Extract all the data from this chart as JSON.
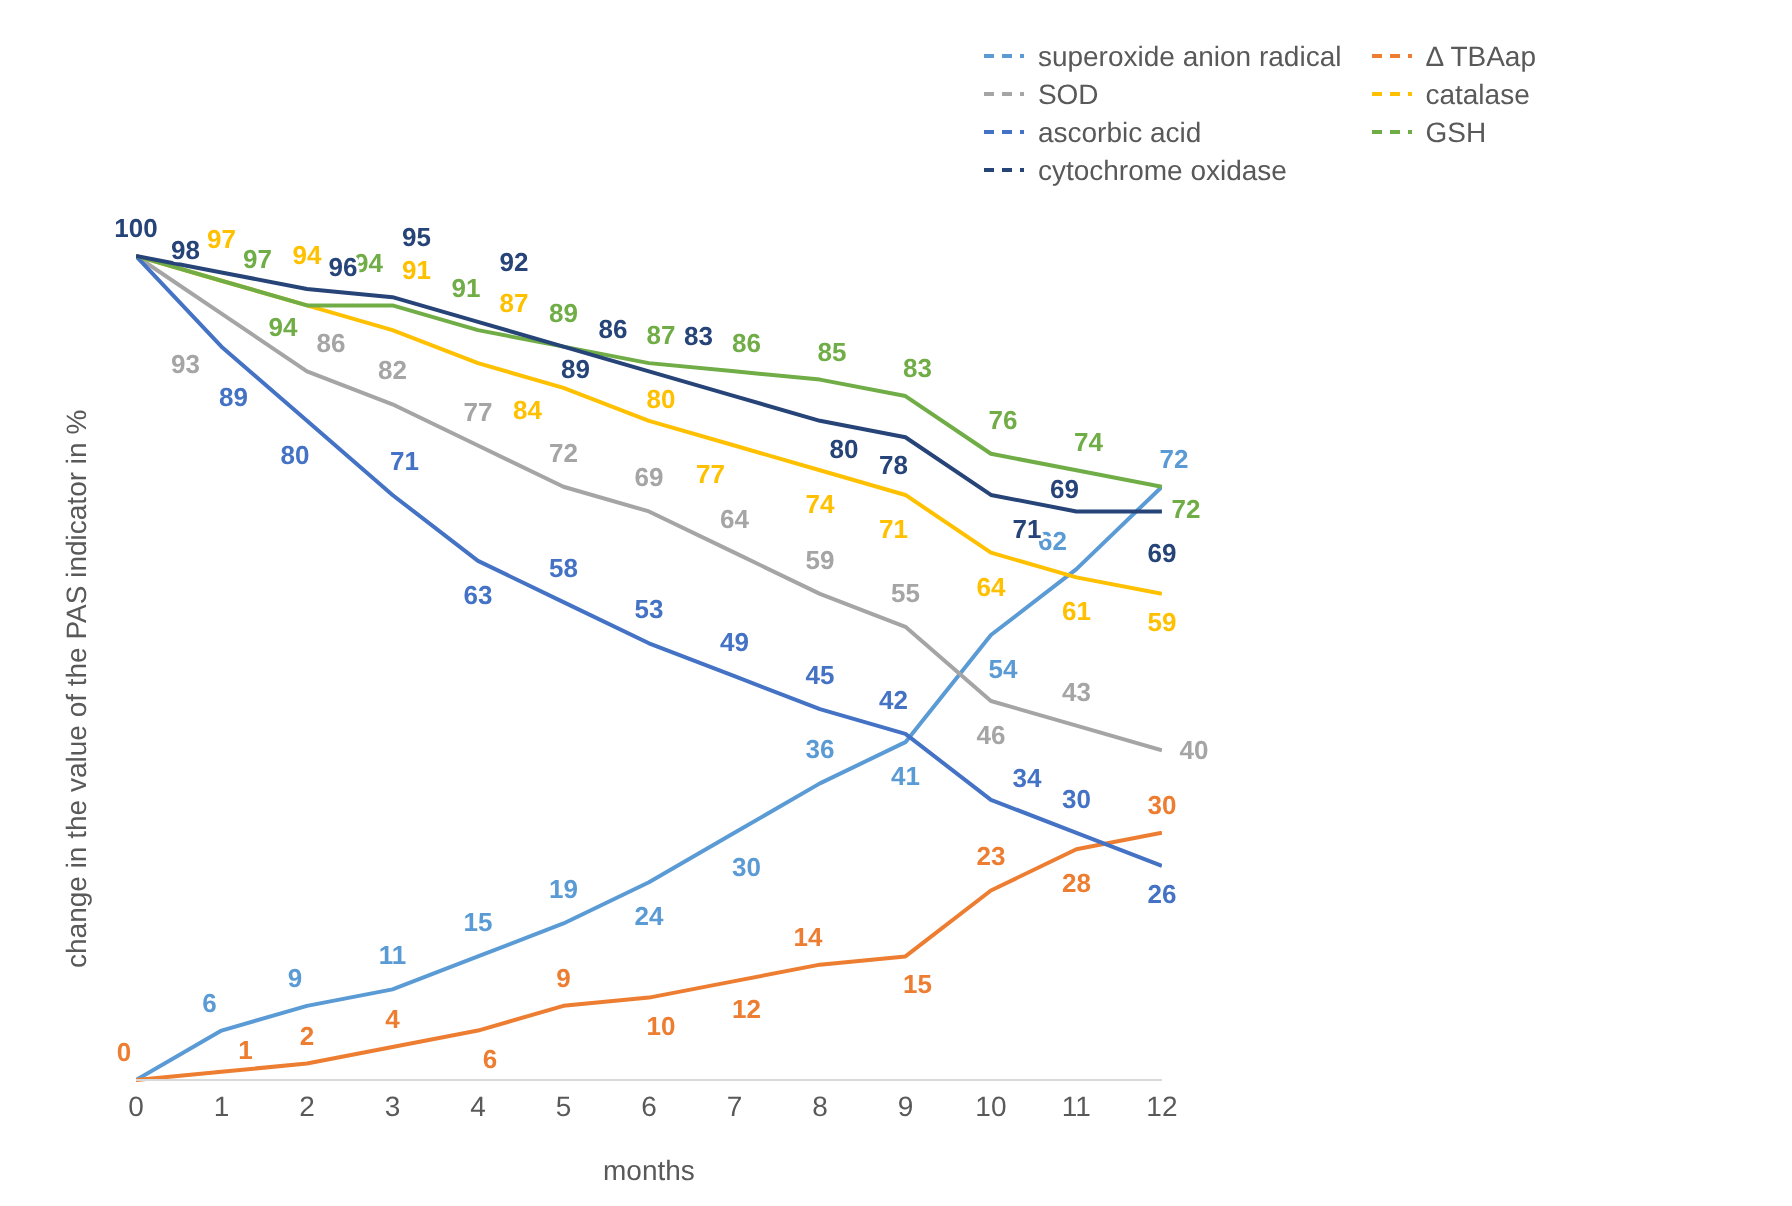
{
  "chart_data": {
    "type": "line",
    "xlabel": "months",
    "ylabel": "change in the value of the PAS indicator in %",
    "x": [
      0,
      1,
      2,
      3,
      4,
      5,
      6,
      7,
      8,
      9,
      10,
      11,
      12
    ],
    "xlim": [
      0,
      12
    ],
    "xticks": [
      0,
      1,
      2,
      3,
      4,
      5,
      6,
      7,
      8,
      9,
      10,
      11,
      12
    ],
    "tick_labels": "x",
    "legend": "top right",
    "line_style": "solid",
    "marker": "none",
    "series": [
      {
        "name": "superoxide anion radical",
        "color": "#5b9bd5",
        "values": [
          0,
          6,
          9,
          11,
          15,
          19,
          24,
          30,
          36,
          41,
          54,
          62,
          72
        ],
        "value_labels": [
          null,
          "6",
          "9",
          "11",
          "15",
          "19",
          "24",
          "30",
          "36",
          "41",
          "54",
          "62",
          "72"
        ]
      },
      {
        "name": "Δ TBAap",
        "color": "#ed7d31",
        "values": [
          0,
          1,
          2,
          4,
          6,
          9,
          10,
          12,
          14,
          15,
          23,
          28,
          30
        ],
        "value_labels": [
          "0",
          "1",
          "2",
          "4",
          "6",
          "9",
          "10",
          "12",
          "14",
          "15",
          "23",
          "28",
          "30"
        ]
      },
      {
        "name": "SOD",
        "color": "#a5a5a5",
        "values": [
          100,
          93,
          86,
          82,
          77,
          72,
          69,
          64,
          59,
          55,
          46,
          43,
          40
        ],
        "value_labels": [
          null,
          "93",
          "86",
          "82",
          "77",
          "72",
          "69",
          "64",
          "59",
          "55",
          "46",
          "43",
          "40"
        ]
      },
      {
        "name": "catalase",
        "color": "#ffc000",
        "values": [
          100,
          97,
          94,
          91,
          87,
          84,
          80,
          77,
          74,
          71,
          64,
          61,
          59
        ],
        "value_labels": [
          null,
          "97",
          "94",
          "91",
          "87",
          "84",
          "80",
          "77",
          "74",
          "71",
          "64",
          "61",
          "59"
        ]
      },
      {
        "name": "ascorbic acid",
        "color": "#4472c4",
        "values": [
          100,
          89,
          80,
          71,
          63,
          58,
          53,
          49,
          45,
          42,
          34,
          30,
          26
        ],
        "value_labels": [
          null,
          "89",
          "80",
          "71",
          "63",
          "58",
          "53",
          "49",
          "45",
          "42",
          "34",
          "30",
          "26"
        ]
      },
      {
        "name": "GSH",
        "color": "#70ad47",
        "values": [
          100,
          97,
          94,
          94,
          91,
          89,
          87,
          86,
          85,
          83,
          76,
          74,
          72
        ],
        "value_labels": [
          null,
          "97",
          "94",
          "94",
          "91",
          "89",
          "87",
          "86",
          "85",
          "83",
          "76",
          "74",
          "72"
        ]
      },
      {
        "name": "cytochrome oxidase",
        "color": "#264478",
        "values": [
          100,
          98,
          96,
          95,
          92,
          89,
          86,
          83,
          80,
          78,
          71,
          69,
          69
        ],
        "value_labels": [
          "100",
          "98",
          "96",
          "95",
          "92",
          "89",
          "86",
          "83",
          "80",
          "78",
          "71",
          "69",
          "69"
        ]
      }
    ]
  }
}
